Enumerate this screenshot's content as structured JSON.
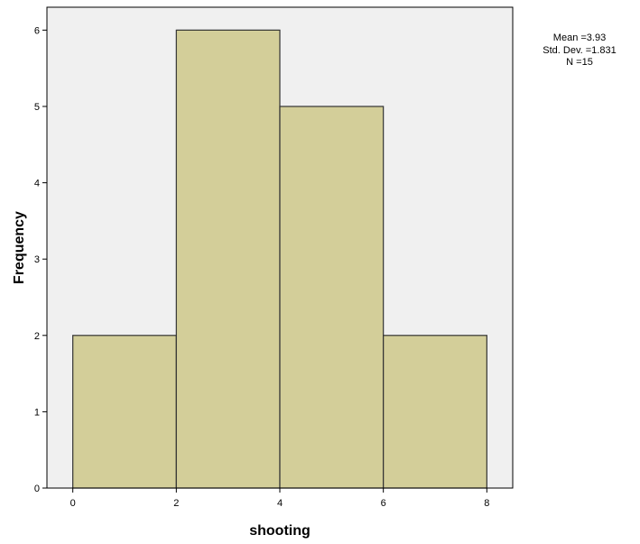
{
  "chart_data": {
    "type": "bar",
    "bins": [
      {
        "start": 0,
        "end": 2,
        "value": 2
      },
      {
        "start": 2,
        "end": 4,
        "value": 6
      },
      {
        "start": 4,
        "end": 6,
        "value": 5
      },
      {
        "start": 6,
        "end": 8,
        "value": 2
      }
    ],
    "x": [
      0,
      2,
      4,
      6
    ],
    "values": [
      2,
      6,
      5,
      2
    ],
    "xlabel": "shooting",
    "ylabel": "Frequency",
    "xlim": [
      -0.5,
      8.5
    ],
    "ylim": [
      0,
      6.3
    ],
    "x_ticks": [
      "0",
      "2",
      "4",
      "6",
      "8"
    ],
    "y_ticks": [
      "0",
      "1",
      "2",
      "3",
      "4",
      "5",
      "6"
    ],
    "grid": false,
    "legend": "none",
    "bar_color": "#d3ce99",
    "bar_edge_color": "#333333",
    "plot_background": "#f0f0f0",
    "annotation": {
      "mean": "Mean =3.93",
      "std_dev": "Std. Dev. =1.831",
      "n": "N =15"
    }
  }
}
